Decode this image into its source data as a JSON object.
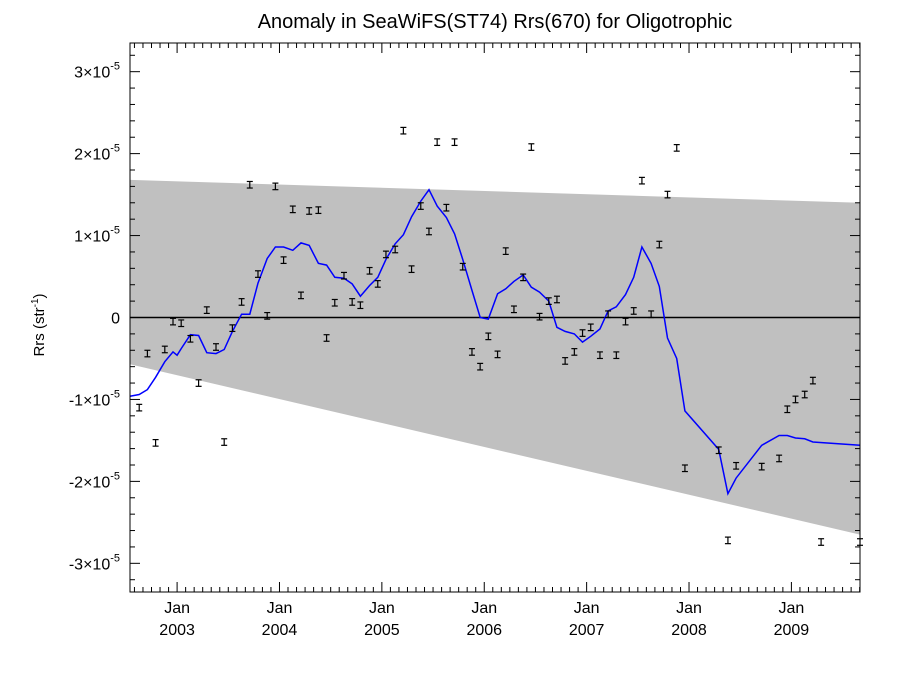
{
  "chart_data": {
    "type": "scatter",
    "title": "Anomaly in SeaWiFS(ST74) Rrs(670) for Oligotrophic",
    "ylabel": "Rrs (str",
    "ylabel_sup": "-1",
    "ylabel_close": ")",
    "xlabel": "",
    "xlim": [
      2002.54,
      2009.67
    ],
    "ylim": [
      -3.35e-05,
      3.35e-05
    ],
    "grid": false,
    "x_ticks": [
      {
        "month": "Jan",
        "year": "2003",
        "x": 2003.0
      },
      {
        "month": "Jan",
        "year": "2004",
        "x": 2004.0
      },
      {
        "month": "Jan",
        "year": "2005",
        "x": 2005.0
      },
      {
        "month": "Jan",
        "year": "2006",
        "x": 2006.0
      },
      {
        "month": "Jan",
        "year": "2007",
        "x": 2007.0
      },
      {
        "month": "Jan",
        "year": "2008",
        "x": 2008.0
      },
      {
        "month": "Jan",
        "year": "2009",
        "x": 2009.0
      }
    ],
    "y_ticks": [
      {
        "value": 3e-05,
        "mantissa": "3",
        "base": "×10",
        "exp": "-5"
      },
      {
        "value": 2e-05,
        "mantissa": "2",
        "base": "×10",
        "exp": "-5"
      },
      {
        "value": 1e-05,
        "mantissa": "1",
        "base": "×10",
        "exp": "-5"
      },
      {
        "value": 0,
        "mantissa": "0",
        "base": "",
        "exp": ""
      },
      {
        "value": -1e-05,
        "mantissa": "-1",
        "base": "×10",
        "exp": "-5"
      },
      {
        "value": -2e-05,
        "mantissa": "-2",
        "base": "×10",
        "exp": "-5"
      },
      {
        "value": -3e-05,
        "mantissa": "-3",
        "base": "×10",
        "exp": "-5"
      }
    ],
    "band": {
      "color": "#c0c0c0",
      "x": [
        2002.54,
        2009.67
      ],
      "upper": [
        1.68e-05,
        1.4e-05
      ],
      "lower": [
        -5.7e-06,
        -2.65e-05
      ]
    },
    "zero_line": {
      "y": 0,
      "color": "#000000"
    },
    "points": {
      "color": "#000000",
      "err": 4e-07,
      "x": [
        2002.63,
        2002.71,
        2002.79,
        2002.88,
        2002.96,
        2003.04,
        2003.13,
        2003.21,
        2003.29,
        2003.38,
        2003.46,
        2003.54,
        2003.63,
        2003.71,
        2003.79,
        2003.88,
        2003.96,
        2004.04,
        2004.13,
        2004.21,
        2004.29,
        2004.38,
        2004.46,
        2004.54,
        2004.63,
        2004.71,
        2004.79,
        2004.88,
        2004.96,
        2005.04,
        2005.13,
        2005.21,
        2005.29,
        2005.38,
        2005.46,
        2005.54,
        2005.63,
        2005.71,
        2005.79,
        2005.88,
        2005.96,
        2006.04,
        2006.13,
        2006.21,
        2006.29,
        2006.38,
        2006.46,
        2006.54,
        2006.63,
        2006.71,
        2006.79,
        2006.88,
        2006.96,
        2007.04,
        2007.13,
        2007.21,
        2007.29,
        2007.38,
        2007.46,
        2007.54,
        2007.63,
        2007.71,
        2007.79,
        2007.88,
        2007.96,
        2008.29,
        2008.38,
        2008.46,
        2008.71,
        2008.88,
        2008.96,
        2009.04,
        2009.13,
        2009.21,
        2009.29,
        2009.67
      ],
      "y": [
        -1.1e-05,
        -4.4e-06,
        -1.53e-05,
        -3.9e-06,
        -5e-07,
        -7e-07,
        -2.6e-06,
        -8e-06,
        9e-07,
        -3.6e-06,
        -1.52e-05,
        -1.3e-06,
        1.9e-06,
        1.62e-05,
        5.3e-06,
        2e-07,
        1.6e-05,
        7e-06,
        1.32e-05,
        2.7e-06,
        1.3e-05,
        1.31e-05,
        -2.5e-06,
        1.8e-06,
        5.1e-06,
        1.9e-06,
        1.5e-06,
        5.7e-06,
        4.1e-06,
        7.7e-06,
        8.3e-06,
        2.28e-05,
        5.9e-06,
        1.36e-05,
        1.05e-05,
        2.14e-05,
        1.34e-05,
        2.14e-05,
        6.2e-06,
        -4.2e-06,
        -6e-06,
        -2.3e-06,
        -4.5e-06,
        8.1e-06,
        1e-06,
        4.9e-06,
        2.08e-05,
        1e-07,
        2e-06,
        2.2e-06,
        -5.3e-06,
        -4.2e-06,
        -1.9e-06,
        -1.2e-06,
        -4.6e-06,
        4e-07,
        -4.6e-06,
        -5e-07,
        8e-07,
        1.67e-05,
        4e-07,
        8.9e-06,
        1.5e-05,
        2.07e-05,
        -1.84e-05,
        -1.62e-05,
        -2.72e-05,
        -1.81e-05,
        -1.82e-05,
        -1.72e-05,
        -1.12e-05,
        -1e-05,
        -9.4e-06,
        -7.7e-06,
        -2.74e-05,
        -2.74e-05
      ]
    },
    "series": [
      {
        "color": "#0000ff",
        "x": [
          2002.54,
          2002.63,
          2002.71,
          2002.79,
          2002.88,
          2002.96,
          2003.0,
          2003.04,
          2003.13,
          2003.21,
          2003.29,
          2003.38,
          2003.46,
          2003.54,
          2003.63,
          2003.71,
          2003.79,
          2003.88,
          2003.96,
          2004.04,
          2004.13,
          2004.21,
          2004.29,
          2004.38,
          2004.46,
          2004.54,
          2004.63,
          2004.71,
          2004.79,
          2004.88,
          2004.96,
          2005.04,
          2005.13,
          2005.21,
          2005.29,
          2005.38,
          2005.46,
          2005.54,
          2005.63,
          2005.71,
          2005.79,
          2005.88,
          2005.96,
          2006.04,
          2006.13,
          2006.21,
          2006.29,
          2006.38,
          2006.46,
          2006.54,
          2006.63,
          2006.71,
          2006.79,
          2006.88,
          2006.96,
          2007.04,
          2007.13,
          2007.21,
          2007.29,
          2007.38,
          2007.46,
          2007.54,
          2007.63,
          2007.71,
          2007.79,
          2007.88,
          2007.96,
          2008.29,
          2008.38,
          2008.46,
          2008.71,
          2008.88,
          2008.96,
          2009.04,
          2009.13,
          2009.21,
          2009.67
        ],
        "y": [
          -9.6e-06,
          -9.4e-06,
          -8.8e-06,
          -7.3e-06,
          -5.4e-06,
          -4.2e-06,
          -4.6e-06,
          -3.8e-06,
          -2.1e-06,
          -2.2e-06,
          -4.3e-06,
          -4.4e-06,
          -3.9e-06,
          -1.7e-06,
          4e-07,
          4e-07,
          4.2e-06,
          7.2e-06,
          8.6e-06,
          8.6e-06,
          8.2e-06,
          9.1e-06,
          8.8e-06,
          6.6e-06,
          6.4e-06,
          4.9e-06,
          4.8e-06,
          4.1e-06,
          2.6e-06,
          3.9e-06,
          4.9e-06,
          7.1e-06,
          9e-06,
          1.01e-05,
          1.23e-05,
          1.42e-05,
          1.56e-05,
          1.36e-05,
          1.22e-05,
          1.02e-05,
          7.1e-06,
          3.3e-06,
          0,
          -2e-07,
          2.9e-06,
          3.5e-06,
          4.4e-06,
          5.2e-06,
          3.7e-06,
          3.1e-06,
          2e-06,
          -1.2e-06,
          -1.7e-06,
          -2e-06,
          -3e-06,
          -2.3e-06,
          -1.4e-06,
          8e-07,
          1.3e-06,
          2.8e-06,
          4.9e-06,
          8.6e-06,
          6.6e-06,
          3.8e-06,
          -2.5e-06,
          -5e-06,
          -1.14e-05,
          -1.61e-05,
          -2.15e-05,
          -1.96e-05,
          -1.56e-05,
          -1.44e-05,
          -1.44e-05,
          -1.47e-05,
          -1.48e-05,
          -1.52e-05,
          -1.56e-05
        ]
      }
    ]
  }
}
